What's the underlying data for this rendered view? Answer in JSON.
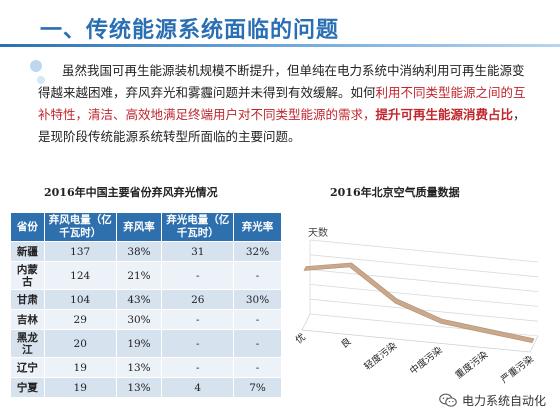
{
  "header": {
    "title": "一、传统能源系统面临的问题"
  },
  "paragraph": {
    "p1": "虽然我国可再生能源装机规模不断提升，但单纯在电力系统中消纳利用可再生能源变得越来越困难，弃风弃光和雾霾问题并未得到有效缓解。如何",
    "p2_red": "利用不同类型能源之间的互补特性，清洁、高效地满足终端用户对不同类型能源的需求，",
    "p3_redbold": "提升可再生能源消费占比",
    "p4": "，是现阶段传统能源系统转型所面临的主要问题。"
  },
  "table_caption": "2016年中国主要省份弃风弃光情况",
  "chart_caption": "2016年北京空气质量数据",
  "table": {
    "headers": [
      "省份",
      "弃风电量（亿千瓦时）",
      "弃风率",
      "弃光电量（亿千瓦时）",
      "弃光率"
    ],
    "rows": [
      [
        "新疆",
        "137",
        "38%",
        "31",
        "32%"
      ],
      [
        "内蒙古",
        "124",
        "21%",
        "-",
        "-"
      ],
      [
        "甘肃",
        "104",
        "43%",
        "26",
        "30%"
      ],
      [
        "吉林",
        "29",
        "30%",
        "-",
        "-"
      ],
      [
        "黑龙江",
        "20",
        "19%",
        "-",
        "-"
      ],
      [
        "辽宁",
        "19",
        "13%",
        "-",
        "-"
      ],
      [
        "宁夏",
        "19",
        "13%",
        "4",
        "7%"
      ]
    ]
  },
  "chart_data": {
    "type": "line",
    "title": "2016年北京空气质量数据",
    "ylabel": "天数",
    "xlabel": "",
    "categories": [
      "优",
      "良",
      "轻度污染",
      "中度污染",
      "重度污染",
      "严重污染"
    ],
    "values": [
      105,
      120,
      60,
      30,
      20,
      10
    ],
    "ylim": [
      0,
      140
    ],
    "grid": true,
    "line_color": "#c9a88c"
  },
  "footer": {
    "text": "电力系统自动化",
    "icon": "wechat-icon"
  }
}
